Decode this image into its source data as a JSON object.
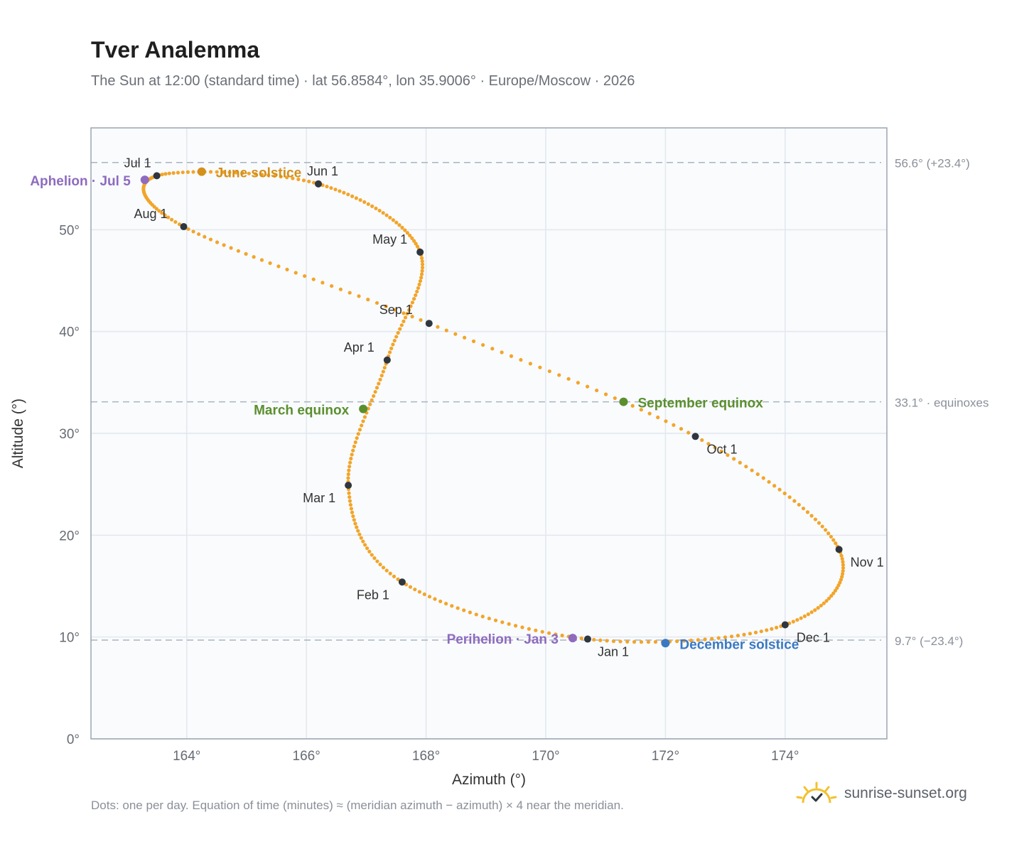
{
  "header": {
    "title": "Tver Analemma",
    "subtitle": "The Sun at 12:00 (standard time) · lat 56.8584°, lon 35.9006° · Europe/Moscow · 2026"
  },
  "footer": {
    "note": "Dots: one per day. Equation of time (minutes) ≈ (meridian azimuth − azimuth) × 4 near the meridian.",
    "brand": "sunrise-sunset.org"
  },
  "colors": {
    "curve": "#f2a52a",
    "month_marker": "#2f3640",
    "aphelion": "#8e6bbf",
    "perihelion": "#8e6bbf",
    "june_solstice": "#d4901b",
    "december_solstice": "#3a78c2",
    "equinox": "#5b8f2e",
    "grid": "#e3e8ee",
    "plot_bg": "#f9fbfd",
    "frame": "#9aa5b1",
    "ref_line": "#aab4bf"
  },
  "chart_data": {
    "type": "scatter",
    "xlabel": "Azimuth (°)",
    "ylabel": "Altitude (°)",
    "xlim": [
      162.4,
      175.7
    ],
    "ylim": [
      0,
      60
    ],
    "xticks": [
      164,
      166,
      168,
      170,
      172,
      174
    ],
    "yticks": [
      0,
      10,
      20,
      30,
      40,
      50
    ],
    "xtick_labels": [
      "164°",
      "166°",
      "168°",
      "170°",
      "172°",
      "174°"
    ],
    "ytick_labels": [
      "0°",
      "10°",
      "20°",
      "30°",
      "40°",
      "50°"
    ],
    "grid": true,
    "reference_lines": [
      {
        "y": 56.6,
        "label": "56.6° (+23.4°)"
      },
      {
        "y": 33.1,
        "label": "33.1° · equinoxes"
      },
      {
        "y": 9.7,
        "label": "9.7° (−23.4°)"
      }
    ],
    "month_points": [
      {
        "date": "Jan 1",
        "az": 170.7,
        "alt": 9.8
      },
      {
        "date": "Feb 1",
        "az": 167.6,
        "alt": 15.4
      },
      {
        "date": "Mar 1",
        "az": 166.7,
        "alt": 24.9
      },
      {
        "date": "Apr 1",
        "az": 167.35,
        "alt": 37.2
      },
      {
        "date": "May 1",
        "az": 167.9,
        "alt": 47.8
      },
      {
        "date": "Jun 1",
        "az": 166.2,
        "alt": 54.5
      },
      {
        "date": "Jul 1",
        "az": 163.5,
        "alt": 55.3
      },
      {
        "date": "Aug 1",
        "az": 163.95,
        "alt": 50.3
      },
      {
        "date": "Sep 1",
        "az": 168.05,
        "alt": 40.8
      },
      {
        "date": "Oct 1",
        "az": 172.5,
        "alt": 29.7
      },
      {
        "date": "Nov 1",
        "az": 174.9,
        "alt": 18.6
      },
      {
        "date": "Dec 1",
        "az": 174.0,
        "alt": 11.2
      }
    ],
    "events": [
      {
        "label": "Perihelion · Jan 3",
        "az": 170.45,
        "alt": 9.9
      },
      {
        "label": "March equinox",
        "az": 166.95,
        "alt": 32.4
      },
      {
        "label": "June solstice",
        "az": 164.25,
        "alt": 55.7
      },
      {
        "label": "Aphelion · Jul 5",
        "az": 163.3,
        "alt": 54.9
      },
      {
        "label": "September equinox",
        "az": 171.3,
        "alt": 33.1
      },
      {
        "label": "December solstice",
        "az": 172.0,
        "alt": 9.4
      }
    ]
  }
}
